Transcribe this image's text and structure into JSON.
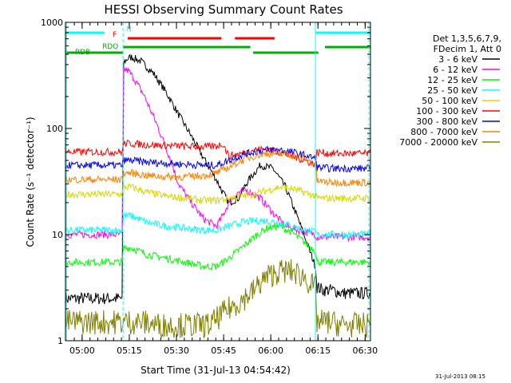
{
  "chart_data": {
    "type": "line",
    "title": "HESSI Observing Summary Count Rates",
    "xlabel": "Start Time (31-Jul-13 04:54:42)",
    "ylabel": "Count Rate (s⁻¹ detector⁻¹)",
    "y_scale": "log",
    "ylim": [
      1,
      1000
    ],
    "x_unit": "minutes after 04:54:42",
    "xlim": [
      0,
      97
    ],
    "x_tick_labels": [
      "05:00",
      "05:15",
      "05:30",
      "05:45",
      "06:00",
      "06:15",
      "06:30"
    ],
    "x_tick_values": [
      5.3,
      20.3,
      35.3,
      50.3,
      65.3,
      80.3,
      95.3
    ],
    "y_tick_labels": [
      "1",
      "10",
      "100",
      "1000"
    ],
    "y_tick_values": [
      1,
      10,
      100,
      1000
    ],
    "legend_placement": "right",
    "legend_header": [
      "Det 1,3,5,6,7,9,",
      "FDecim 1, Att 0"
    ],
    "timestamp": "31-Jul-2013 08:15",
    "series": [
      {
        "name": "3 - 6 keV",
        "color": "#000000",
        "x": [
          0,
          12.4,
          18.0,
          18.5,
          20,
          21,
          24,
          28,
          32,
          36,
          40,
          44,
          48,
          50,
          52,
          55,
          58,
          62,
          66,
          70,
          74,
          79.5,
          80,
          82,
          85,
          88,
          90,
          92,
          94,
          97
        ],
        "y": [
          2.5,
          2.5,
          2.5,
          420,
          460,
          470,
          430,
          330,
          220,
          135,
          85,
          52,
          33,
          25,
          20,
          22,
          32,
          45,
          42,
          28,
          14,
          5,
          3.2,
          3,
          3,
          2.8,
          2.8,
          2.8,
          2.8,
          2.8
        ]
      },
      {
        "name": "6 - 12 keV",
        "color": "#ff00ff",
        "x": [
          0,
          12.4,
          18.0,
          18.5,
          20,
          22,
          25,
          29,
          33,
          36,
          40,
          44,
          48,
          50,
          52,
          55,
          58,
          62,
          66,
          70,
          74,
          79.5,
          80,
          84,
          88,
          92,
          97
        ],
        "y": [
          10,
          10,
          10,
          360,
          350,
          290,
          205,
          110,
          55,
          30,
          20,
          14,
          12,
          15,
          20,
          25,
          26,
          22,
          16,
          12,
          11,
          10,
          9.5,
          9.5,
          9.5,
          9.5,
          9.5
        ]
      },
      {
        "name": "12 - 25 keV",
        "color": "#00ff00",
        "x": [
          0,
          12.4,
          18.0,
          18.5,
          21,
          26,
          32,
          38,
          44,
          48,
          52,
          56,
          60,
          64,
          68,
          72,
          76,
          79.5,
          80,
          84,
          88,
          92,
          97
        ],
        "y": [
          5.5,
          5.5,
          5.5,
          7.5,
          7.5,
          6.5,
          6.0,
          5.5,
          5.0,
          5.0,
          6.0,
          7.5,
          9.5,
          11.5,
          12.0,
          10.5,
          8.5,
          7.0,
          5.5,
          5.5,
          5.5,
          5.5,
          5.5
        ]
      },
      {
        "name": "25 - 50 keV",
        "color": "#00ffff",
        "x": [
          0,
          12.4,
          18.0,
          18.5,
          21,
          26,
          32,
          38,
          44,
          48,
          52,
          56,
          60,
          64,
          68,
          72,
          76,
          79.5,
          80,
          84,
          88,
          92,
          97
        ],
        "y": [
          11,
          11,
          11,
          15,
          15,
          13,
          12,
          11.5,
          11,
          11,
          12,
          13,
          13.5,
          13.5,
          13,
          12,
          11,
          10.5,
          10,
          10,
          10,
          10,
          10
        ]
      },
      {
        "name": "50 - 100 keV",
        "color": "#d8d800",
        "x": [
          0,
          12.4,
          18.0,
          18.5,
          21,
          26,
          32,
          38,
          44,
          48,
          52,
          56,
          60,
          64,
          68,
          72,
          76,
          79.5,
          80,
          84,
          88,
          92,
          97
        ],
        "y": [
          24,
          24,
          24,
          28,
          28,
          25,
          23,
          22,
          21,
          21,
          22,
          23,
          24,
          26,
          28,
          27,
          25,
          23,
          22,
          22,
          22,
          22,
          22
        ]
      },
      {
        "name": "100 - 300 keV",
        "color": "#ff0000",
        "x": [
          0,
          12.4,
          18.0,
          18.5,
          21,
          26,
          32,
          38,
          44,
          48,
          50,
          52,
          56,
          60,
          64,
          68,
          72,
          76,
          79.5,
          80,
          84,
          88,
          92,
          97
        ],
        "y": [
          60,
          60,
          60,
          72,
          72,
          70,
          69,
          68,
          67,
          68,
          72,
          55,
          58,
          63,
          64,
          60,
          55,
          50,
          46,
          60,
          58,
          58,
          58,
          58
        ]
      },
      {
        "name": "300 - 800 keV",
        "color": "#0000ff",
        "x": [
          0,
          12.4,
          18.0,
          18.5,
          21,
          26,
          32,
          38,
          44,
          48,
          52,
          56,
          60,
          64,
          68,
          72,
          76,
          79.5,
          80,
          84,
          88,
          92,
          97
        ],
        "y": [
          45,
          45,
          45,
          50,
          50,
          48,
          47,
          46,
          45,
          45,
          50,
          56,
          60,
          63,
          63,
          60,
          56,
          52,
          43,
          42,
          42,
          42,
          42
        ]
      },
      {
        "name": "800 - 7000 keV",
        "color": "#ff8000",
        "x": [
          0,
          12.4,
          18.0,
          18.5,
          21,
          26,
          32,
          38,
          44,
          48,
          52,
          56,
          60,
          64,
          68,
          72,
          76,
          79.5,
          80,
          84,
          88,
          92,
          97
        ],
        "y": [
          33,
          33,
          33,
          38,
          38,
          36,
          35,
          35,
          36,
          38,
          43,
          50,
          55,
          58,
          58,
          56,
          52,
          46,
          32,
          31,
          31,
          31,
          31
        ]
      },
      {
        "name": "7000 - 20000 keV",
        "color": "#808000",
        "x": [
          0,
          12.4,
          18.0,
          18.5,
          24,
          30,
          36,
          42,
          46,
          48,
          52,
          56,
          60,
          62,
          64,
          68,
          72,
          76,
          79.5,
          80,
          84,
          88,
          92,
          96,
          97
        ],
        "y": [
          1.5,
          1.5,
          1.5,
          1.5,
          1.5,
          1.4,
          1.4,
          1.4,
          1.4,
          1.6,
          2.0,
          2.4,
          3.0,
          3.5,
          4.0,
          4.5,
          4.5,
          4.0,
          3.0,
          1.5,
          1.5,
          1.4,
          1.4,
          1.4,
          1.4
        ]
      }
    ],
    "flag_bars": [
      {
        "label": "N",
        "color": "#00ffff",
        "x_ranges": [
          [
            0,
            12.4
          ],
          [
            79.5,
            97
          ]
        ]
      },
      {
        "label": "F",
        "color": "#ff0000",
        "x_ranges": [
          [
            19.8,
            49.6
          ],
          [
            53.9,
            66.5
          ]
        ]
      },
      {
        "label": "RDO",
        "color": "#00b000",
        "x_ranges": [
          [
            18.3,
            58.8
          ],
          [
            82.5,
            97
          ]
        ]
      },
      {
        "label": "RDB",
        "color": "#00b000",
        "x_ranges": [
          [
            0,
            18.3
          ],
          [
            59.7,
            80.4
          ]
        ]
      }
    ],
    "vertical_markers": [
      {
        "x": 0.3,
        "color": "#00ffff",
        "style": "solid"
      },
      {
        "x": 18.3,
        "color": "#00ffff",
        "style": "dashed"
      },
      {
        "x": 79.5,
        "color": "#00ffff",
        "style": "solid"
      },
      {
        "x": 96.5,
        "color": "#00ffff",
        "style": "dashed"
      }
    ]
  }
}
